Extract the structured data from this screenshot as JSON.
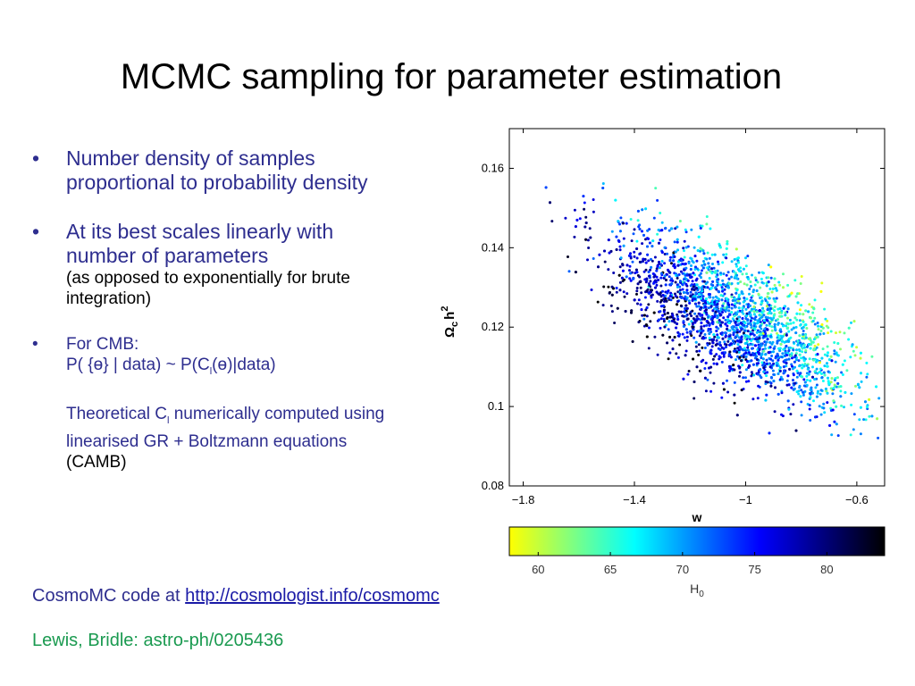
{
  "slide": {
    "title": "MCMC sampling for parameter estimation",
    "bullets": {
      "b1": "Number density of samples proportional to probability density",
      "b2_main": "At its best scales linearly with number of parameters",
      "b2_note": "(as opposed to exponentially for brute integration)",
      "b3_head": "For CMB:",
      "b3_formula_a": "P( {ɵ} | data) ~ P(C",
      "b3_formula_sub": "l",
      "b3_formula_b": "(ɵ)|data)",
      "b3_theory_a": "Theoretical C",
      "b3_theory_sub": "l",
      "b3_theory_b": " numerically computed using linearised GR + Boltzmann equations",
      "b3_camb": "(CAMB)"
    },
    "bullet_glyph": "•",
    "cosmomc_text": "CosmoMC code at ",
    "cosmomc_link": "http://cosmologist.info/cosmomc",
    "reference": "Lewis, Bridle: astro-ph/0205436"
  },
  "colors": {
    "bullet_text": "#2e2e8f",
    "link": "#1a1aa6",
    "reference": "#1a9a50"
  },
  "chart_data": {
    "type": "scatter",
    "xlabel": "w",
    "ylabel_base": "Ω",
    "ylabel_sub": "c",
    "ylabel_rest": "h",
    "ylabel_sup": "2",
    "xlim": [
      -1.85,
      -0.5
    ],
    "ylim": [
      0.08,
      0.17
    ],
    "xticks": [
      -1.8,
      -1.4,
      -1,
      -0.6
    ],
    "xtick_labels": [
      "−1.8",
      "−1.4",
      "−1",
      "−0.6"
    ],
    "yticks": [
      0.08,
      0.1,
      0.12,
      0.14,
      0.16
    ],
    "ytick_labels": [
      "0.08",
      "0.1",
      "0.12",
      "0.14",
      "0.16"
    ],
    "grid": false,
    "color_by": "H0",
    "n_points": 3000,
    "point_cloud": {
      "mean_w": -1.05,
      "mean_omegach2": 0.122,
      "std_w": 0.22,
      "std_omegach2": 0.011,
      "correlation": -0.72
    },
    "colorbar": {
      "label_base": "H",
      "label_sub": "0",
      "range": [
        58,
        84
      ],
      "ticks": [
        60,
        65,
        70,
        75,
        80
      ],
      "tick_labels": [
        "60",
        "65",
        "70",
        "75",
        "80"
      ],
      "colormap": [
        "#ffff00",
        "#80ff80",
        "#00ffff",
        "#0080ff",
        "#0000ff",
        "#000080",
        "#000000"
      ]
    }
  }
}
